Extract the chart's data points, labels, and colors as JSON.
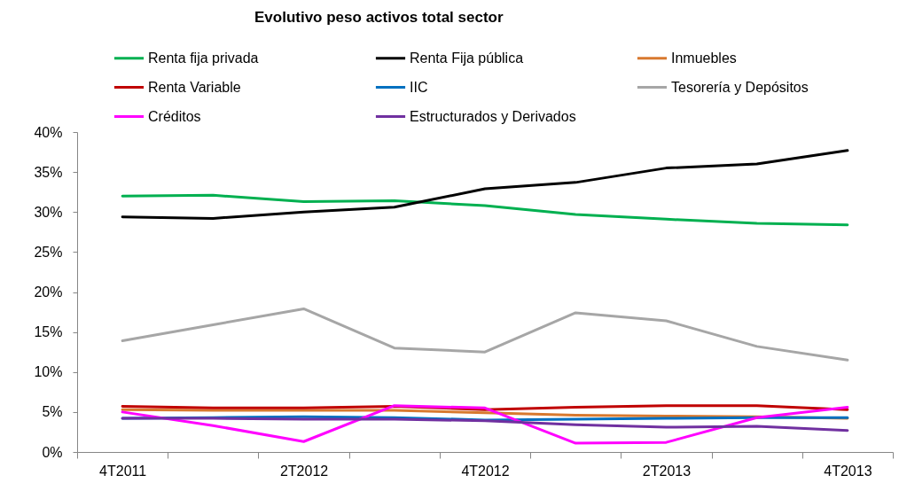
{
  "chart_data": {
    "type": "line",
    "title": "Evolutivo peso activos total sector",
    "categories": [
      "4T2011",
      null,
      "2T2012",
      null,
      "4T2012",
      null,
      "2T2013",
      null,
      "4T2013"
    ],
    "series": [
      {
        "name": "Renta fija privada",
        "color": "#00b050",
        "values": [
          32.0,
          32.1,
          31.3,
          31.4,
          30.8,
          29.7,
          29.1,
          28.6,
          28.4
        ]
      },
      {
        "name": "Renta Fija pública",
        "color": "#000000",
        "values": [
          29.4,
          29.2,
          30.0,
          30.6,
          32.9,
          33.7,
          35.5,
          36.0,
          37.7
        ]
      },
      {
        "name": "Inmuebles",
        "color": "#d8792f",
        "values": [
          5.3,
          5.2,
          5.2,
          5.2,
          4.9,
          4.6,
          4.5,
          4.4,
          4.2
        ]
      },
      {
        "name": "Renta Variable",
        "color": "#c00000",
        "values": [
          5.7,
          5.5,
          5.5,
          5.7,
          5.3,
          5.6,
          5.8,
          5.8,
          5.3
        ]
      },
      {
        "name": "IIC",
        "color": "#0070c0",
        "values": [
          4.2,
          4.3,
          4.4,
          4.3,
          4.0,
          4.1,
          4.2,
          4.3,
          4.3
        ]
      },
      {
        "name": "Tesorería y Depósitos",
        "color": "#a6a6a6",
        "values": [
          13.9,
          15.9,
          17.9,
          13.0,
          12.5,
          17.4,
          16.4,
          13.2,
          11.5
        ]
      },
      {
        "name": "Créditos",
        "color": "#ff00ff",
        "values": [
          5.0,
          3.3,
          1.3,
          5.8,
          5.5,
          1.1,
          1.2,
          4.3,
          5.6
        ]
      },
      {
        "name": "Estructurados y Derivados",
        "color": "#7030a0",
        "values": [
          4.2,
          4.2,
          4.1,
          4.1,
          3.9,
          3.4,
          3.1,
          3.2,
          2.7
        ]
      }
    ],
    "ylim": [
      0,
      40
    ],
    "yticks": [
      {
        "value": 0,
        "label": "0%"
      },
      {
        "value": 5,
        "label": "5%"
      },
      {
        "value": 10,
        "label": "10%"
      },
      {
        "value": 15,
        "label": "15%"
      },
      {
        "value": 20,
        "label": "20%"
      },
      {
        "value": 25,
        "label": "25%"
      },
      {
        "value": 30,
        "label": "30%"
      },
      {
        "value": 35,
        "label": "35%"
      },
      {
        "value": 40,
        "label": "40%"
      }
    ],
    "grid": false,
    "legend": "top"
  }
}
